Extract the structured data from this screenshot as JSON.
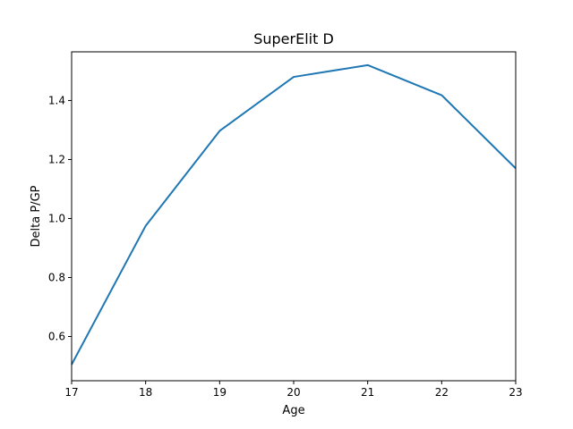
{
  "chart_data": {
    "type": "line",
    "title": "SuperElit D",
    "xlabel": "Age",
    "ylabel": "Delta P/GP",
    "xlim": [
      17,
      23
    ],
    "ylim": [
      0.45,
      1.565
    ],
    "x_ticks": [
      17,
      18,
      19,
      20,
      21,
      22,
      23
    ],
    "y_ticks": [
      0.6,
      0.8,
      1.0,
      1.2,
      1.4
    ],
    "grid": false,
    "series": [
      {
        "x": [
          17,
          18,
          19,
          20,
          21,
          22,
          23
        ],
        "y": [
          0.505,
          0.975,
          1.297,
          1.48,
          1.52,
          1.418,
          1.17
        ],
        "color": "#1f77b4"
      }
    ]
  }
}
